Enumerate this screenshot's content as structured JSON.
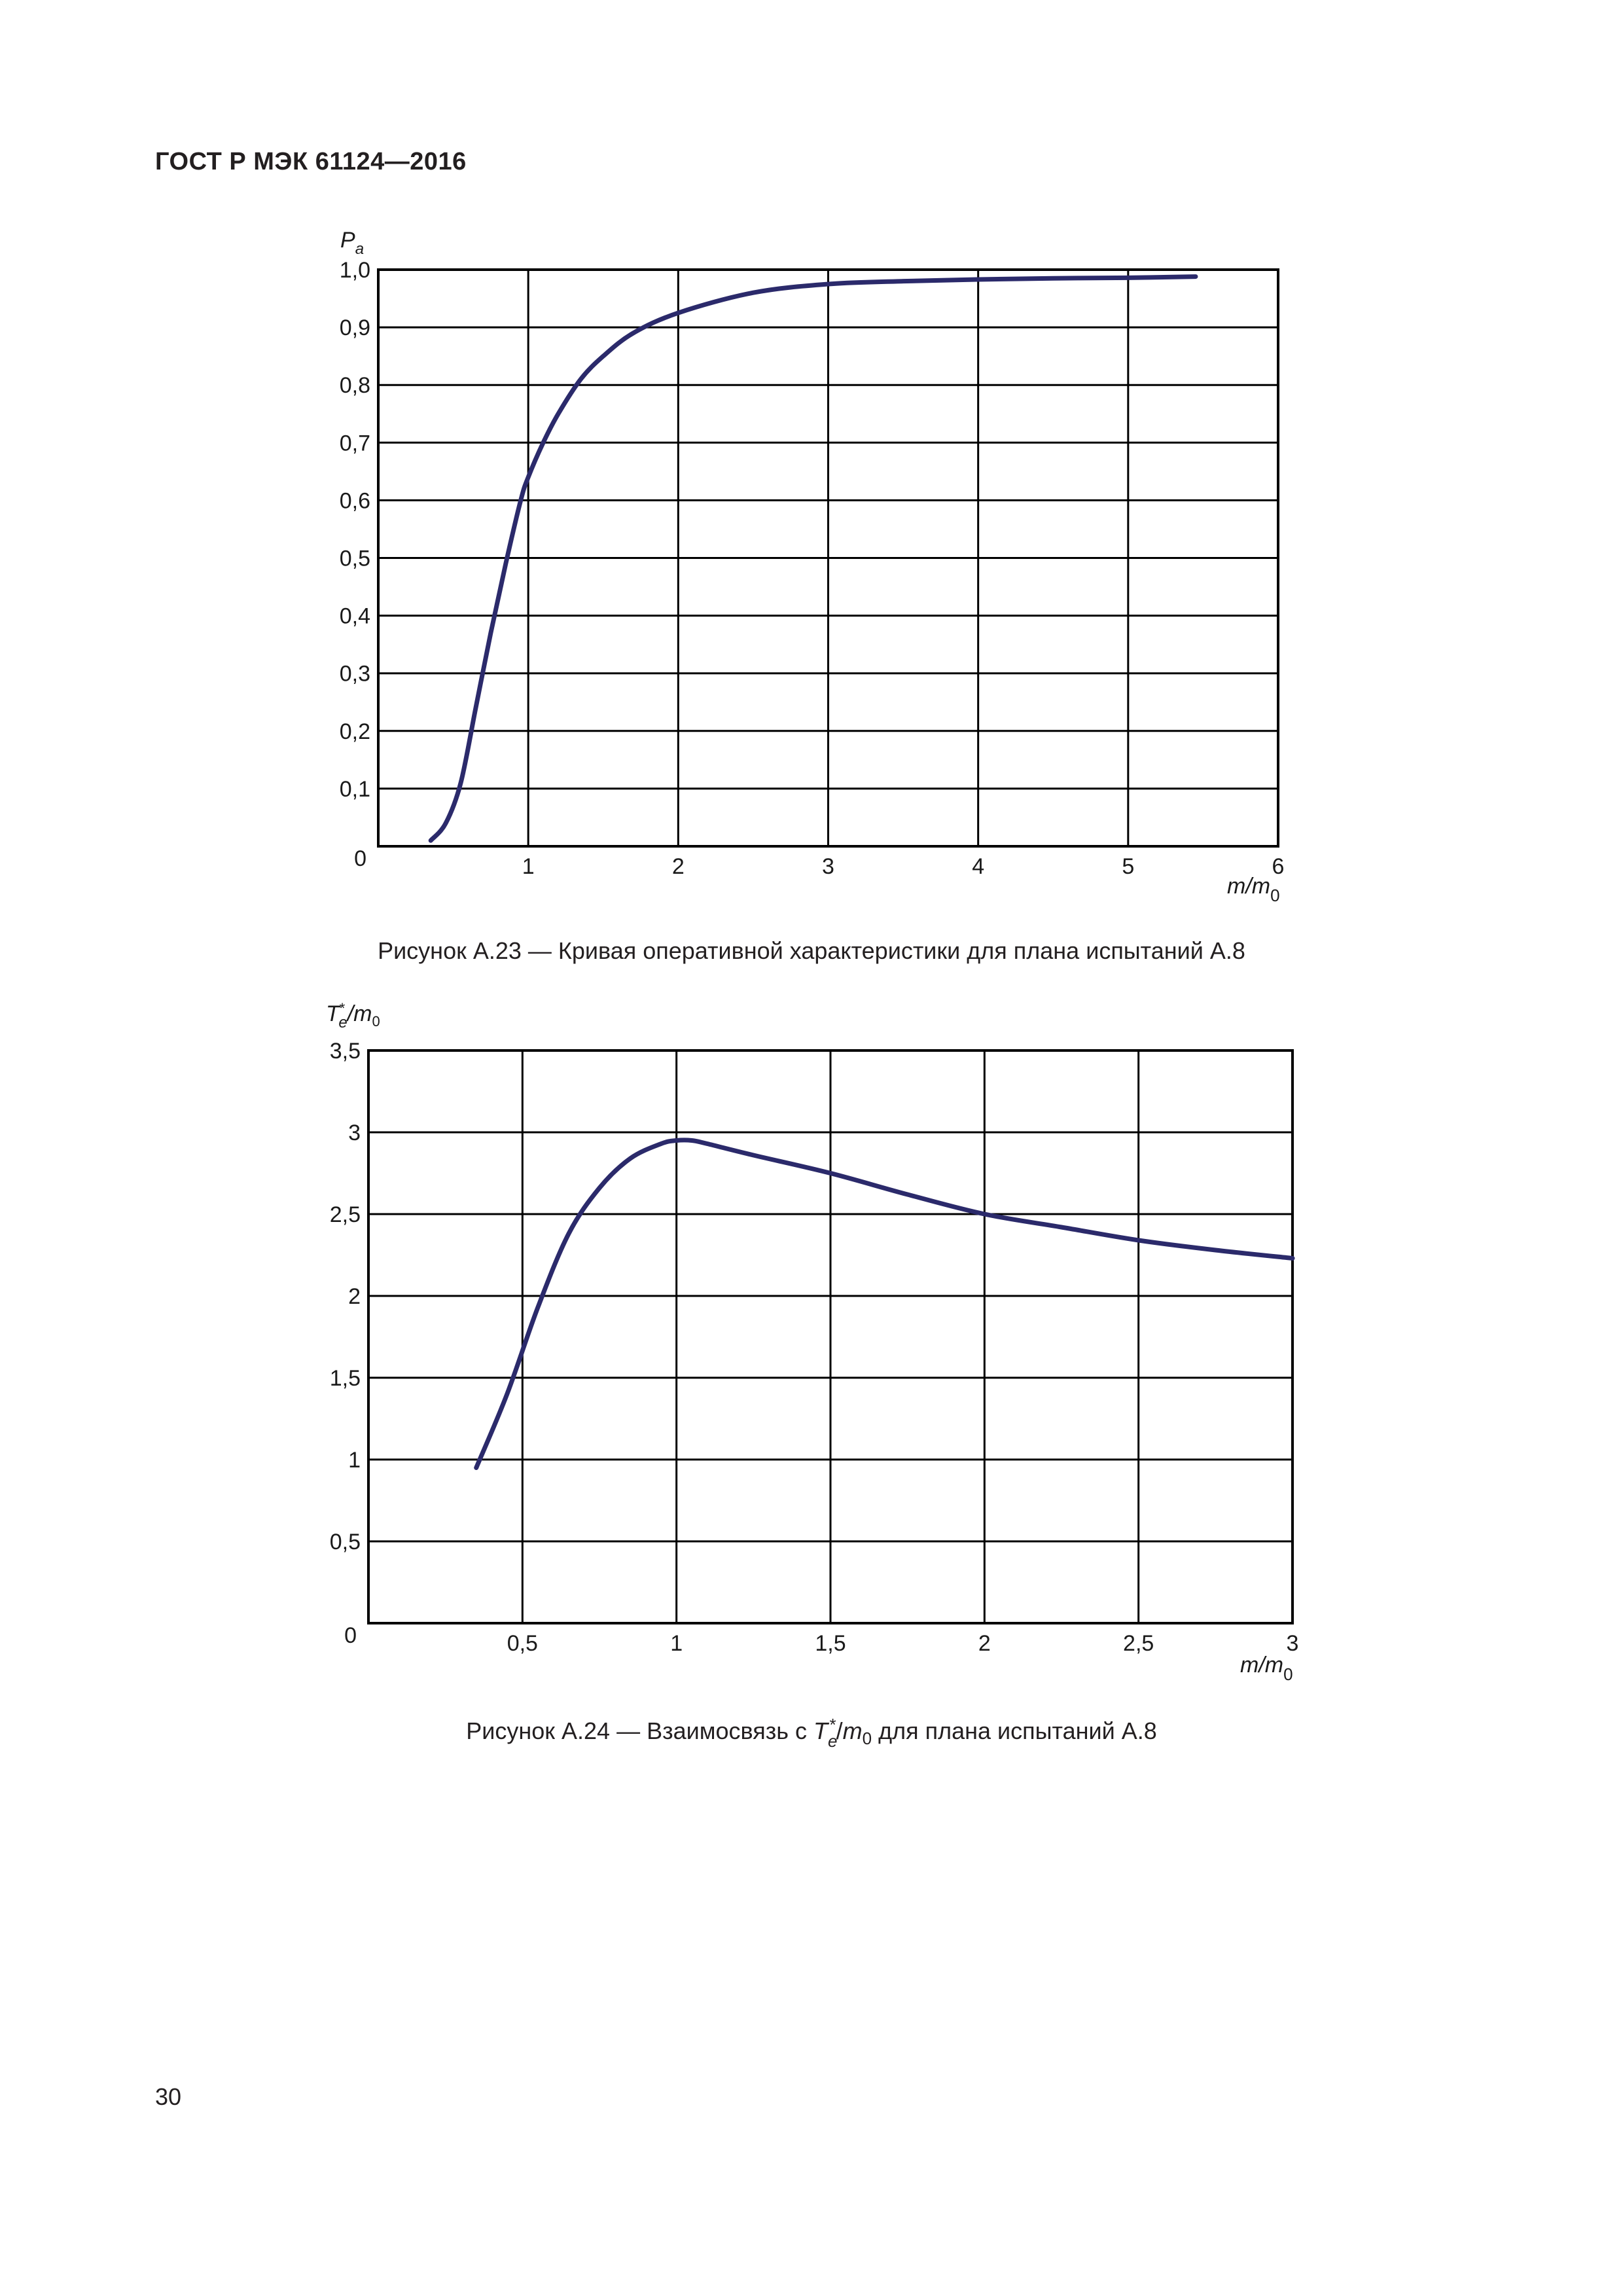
{
  "header": {
    "title": "ГОСТ Р МЭК 61124—2016"
  },
  "page_number": "30",
  "colors": {
    "curve": "#2b2a6b",
    "grid": "#000000",
    "text": "#231f20"
  },
  "chart_data": [
    {
      "type": "line",
      "figure_caption": "Рисунок А.23 — Кривая оперативной характеристики для плана испытаний А.8",
      "ylabel": "Pa",
      "xlabel": "m/m0",
      "xlim": [
        0,
        6
      ],
      "ylim": [
        0,
        1.0
      ],
      "x_ticks": [
        "1",
        "2",
        "3",
        "4",
        "5",
        "6"
      ],
      "y_ticks": [
        "0",
        "0,1",
        "0,2",
        "0,3",
        "0,4",
        "0,5",
        "0,6",
        "0,7",
        "0,8",
        "0,9",
        "1,0"
      ],
      "origin_label": "0",
      "grid": true,
      "series": [
        {
          "x": [
            0.35,
            0.45,
            0.55,
            0.65,
            0.75,
            0.85,
            0.95,
            1.0,
            1.1,
            1.2,
            1.35,
            1.5,
            1.7,
            2.0,
            2.5,
            3.0,
            3.5,
            4.0,
            4.5,
            5.0,
            5.45
          ],
          "y": [
            0.01,
            0.04,
            0.11,
            0.24,
            0.37,
            0.49,
            0.6,
            0.64,
            0.7,
            0.75,
            0.81,
            0.85,
            0.89,
            0.925,
            0.96,
            0.975,
            0.98,
            0.983,
            0.985,
            0.986,
            0.988
          ]
        }
      ]
    },
    {
      "type": "line",
      "figure_caption_prefix": "Рисунок А.24 — Взаимосвязь с ",
      "figure_caption_suffix": " для плана испытаний А.8",
      "ylabel": "Te*/m0",
      "xlabel": "m/m0",
      "xlim": [
        0,
        3
      ],
      "ylim": [
        0,
        3.5
      ],
      "x_ticks": [
        "0,5",
        "1",
        "1,5",
        "2",
        "2,5",
        "3"
      ],
      "y_ticks": [
        "0",
        "0,5",
        "1",
        "1,5",
        "2",
        "2,5",
        "3",
        "3,5"
      ],
      "origin_label": "0",
      "grid": true,
      "series": [
        {
          "x": [
            0.35,
            0.45,
            0.55,
            0.65,
            0.75,
            0.85,
            0.95,
            1.0,
            1.05,
            1.1,
            1.25,
            1.5,
            1.75,
            2.0,
            2.25,
            2.5,
            2.75,
            3.0
          ],
          "y": [
            0.95,
            1.4,
            1.93,
            2.38,
            2.66,
            2.84,
            2.93,
            2.95,
            2.95,
            2.93,
            2.86,
            2.75,
            2.62,
            2.5,
            2.42,
            2.34,
            2.28,
            2.23
          ]
        }
      ]
    }
  ]
}
